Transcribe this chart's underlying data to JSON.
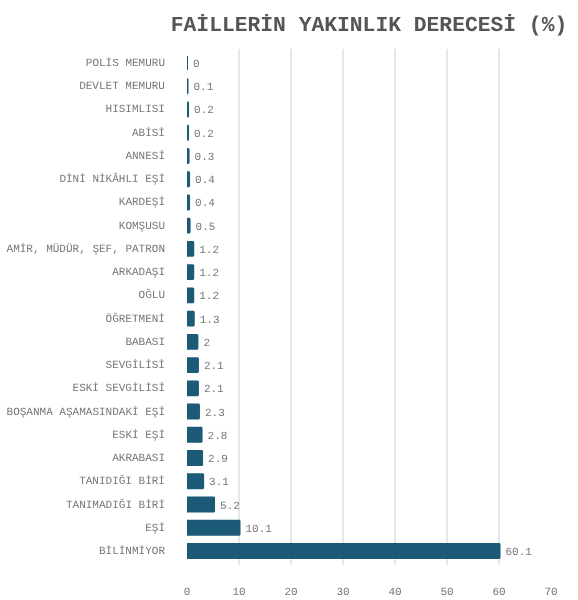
{
  "chart_data": {
    "type": "bar",
    "orientation": "horizontal",
    "title": "FAİLLERİN YAKINLIK DERECESİ (%)",
    "categories": [
      "POLİS MEMURU",
      "DEVLET MEMURU",
      "HISIMLISI",
      "ABİSİ",
      "ANNESİ",
      "DİNİ NİKÂHLI EŞİ",
      "KARDEŞİ",
      "KOMŞUSU",
      "AMİR, MÜDÜR, ŞEF, PATRON",
      "ARKADAŞI",
      "OĞLU",
      "ÖĞRETMENİ",
      "BABASI",
      "SEVGİLİSİ",
      "ESKİ SEVGİLİSİ",
      "BOŞANMA AŞAMASINDAKİ EŞİ",
      "ESKİ EŞİ",
      "AKRABASI",
      "TANIDIĞI BİRİ",
      "TANIMADIĞI BİRİ",
      "EŞİ",
      "BİLİNMİYOR"
    ],
    "values": [
      0,
      0.1,
      0.2,
      0.2,
      0.3,
      0.4,
      0.4,
      0.5,
      1.2,
      1.2,
      1.2,
      1.3,
      2,
      2.1,
      2.1,
      2.3,
      2.8,
      2.9,
      3.1,
      5.2,
      10.1,
      60.1
    ],
    "color": "#1d5a78",
    "xlim": [
      0,
      70
    ],
    "xticks": [
      0,
      10,
      20,
      30,
      40,
      50,
      60,
      70
    ],
    "grid": "x",
    "data_labels": true
  }
}
